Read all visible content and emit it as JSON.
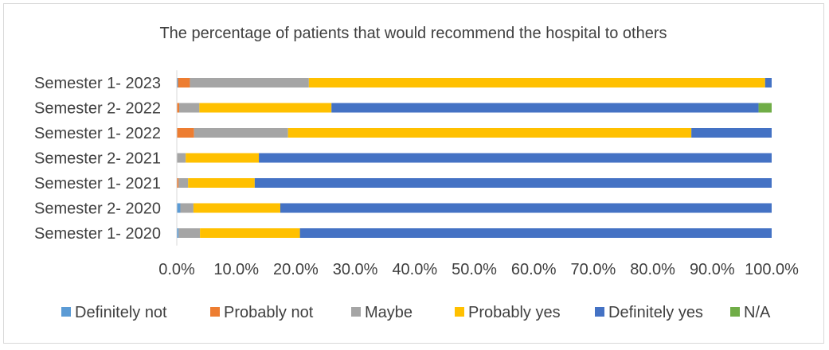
{
  "chart_data": {
    "type": "bar",
    "orientation": "horizontal",
    "stacked": "percent",
    "title": "The percentage of patients that would recommend the hospital to others",
    "categories": [
      "Semester 1- 2023",
      "Semester 2- 2022",
      "Semester 1- 2022",
      "Semester 2- 2021",
      "Semester 1- 2021",
      "Semester 2- 2020",
      "Semester 1- 2020"
    ],
    "series": [
      {
        "name": "Definitely not",
        "color": "#5b9bd5",
        "values": [
          0.2,
          0.0,
          0.0,
          0.0,
          0.0,
          0.6,
          0.3
        ]
      },
      {
        "name": "Probably not",
        "color": "#ed7d31",
        "values": [
          2.0,
          0.4,
          2.9,
          0.0,
          0.3,
          0.0,
          0.0
        ]
      },
      {
        "name": "Maybe",
        "color": "#a5a5a5",
        "values": [
          20.0,
          3.4,
          15.8,
          1.5,
          1.6,
          2.2,
          3.6
        ]
      },
      {
        "name": "Probably yes",
        "color": "#ffc000",
        "values": [
          76.7,
          22.2,
          67.8,
          12.3,
          11.2,
          14.6,
          16.8
        ]
      },
      {
        "name": "Definitely yes",
        "color": "#4472c4",
        "values": [
          1.1,
          71.8,
          13.5,
          86.2,
          86.9,
          82.6,
          79.3
        ]
      },
      {
        "name": "N/A",
        "color": "#70ad47",
        "values": [
          0.0,
          2.2,
          0.0,
          0.0,
          0.0,
          0.0,
          0.0
        ]
      }
    ],
    "xlim": [
      0,
      100
    ],
    "x_ticks": [
      "0.0%",
      "10.0%",
      "20.0%",
      "30.0%",
      "40.0%",
      "50.0%",
      "60.0%",
      "70.0%",
      "80.0%",
      "90.0%",
      "100.0%"
    ],
    "grid": false,
    "legend_position": "bottom"
  }
}
